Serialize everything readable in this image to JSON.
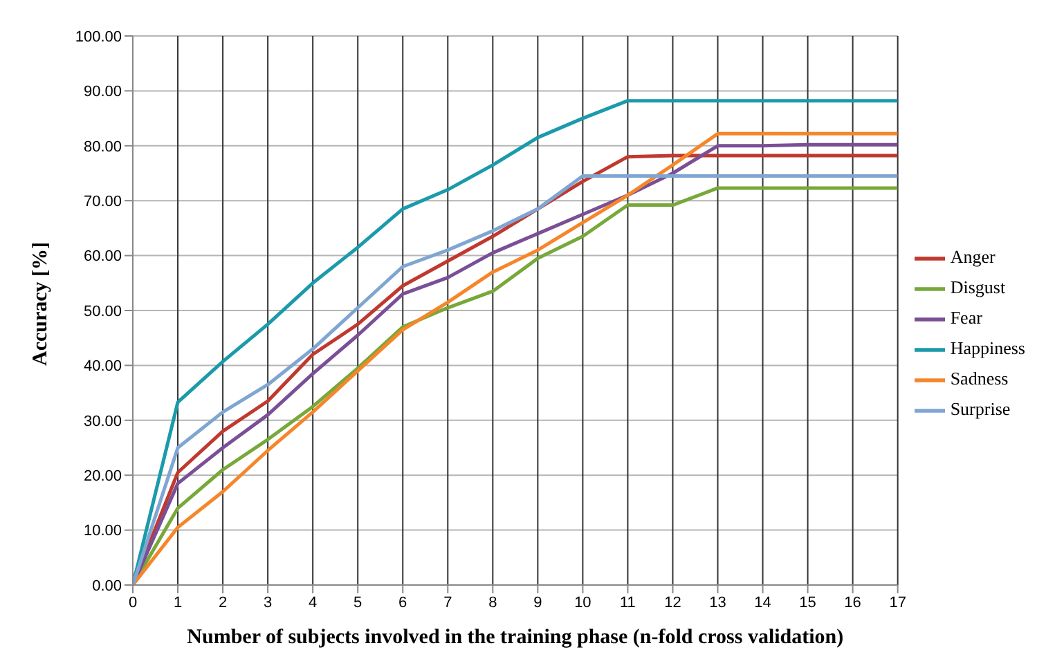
{
  "chart_data": {
    "type": "line",
    "xlabel": "Number of subjects involved in the training phase (n-fold cross validation)",
    "ylabel": "Accuracy  [%]",
    "x": [
      0,
      1,
      2,
      3,
      4,
      5,
      6,
      7,
      8,
      9,
      10,
      11,
      12,
      13,
      14,
      15,
      16,
      17
    ],
    "xlim": [
      0,
      17
    ],
    "xticks": [
      0,
      1,
      2,
      3,
      4,
      5,
      6,
      7,
      8,
      9,
      10,
      11,
      12,
      13,
      14,
      15,
      16,
      17
    ],
    "ylim": [
      0,
      100
    ],
    "yticks": [
      {
        "value": 0,
        "label": "0.00"
      },
      {
        "value": 10,
        "label": "10.00"
      },
      {
        "value": 20,
        "label": "20.00"
      },
      {
        "value": 30,
        "label": "30.00"
      },
      {
        "value": 40,
        "label": "40.00"
      },
      {
        "value": 50,
        "label": "50.00"
      },
      {
        "value": 60,
        "label": "60.00"
      },
      {
        "value": 70,
        "label": "70.00"
      },
      {
        "value": 80,
        "label": "80.00"
      },
      {
        "value": 90,
        "label": "90.00"
      },
      {
        "value": 100,
        "label": "100.00"
      }
    ],
    "grid": true,
    "legend": "right",
    "marker": "none",
    "line_style": "solid",
    "series": [
      {
        "name": "Anger",
        "color": "#c0392f",
        "values": [
          0,
          20.5,
          28,
          33.5,
          42,
          47.5,
          54.5,
          59,
          63.5,
          68.5,
          73.5,
          78,
          78.2,
          78.2,
          78.2,
          78.2,
          78.2,
          78.2
        ]
      },
      {
        "name": "Disgust",
        "color": "#77a83a",
        "values": [
          0,
          14,
          21,
          26.5,
          32.5,
          39.5,
          47,
          50.5,
          53.5,
          59.5,
          63.5,
          69.2,
          69.2,
          72.3,
          72.3,
          72.3,
          72.3,
          72.3
        ]
      },
      {
        "name": "Fear",
        "color": "#7a4f96",
        "values": [
          0,
          18.5,
          25,
          31,
          38.5,
          45.5,
          53,
          56,
          60.5,
          64,
          67.5,
          71,
          75,
          80,
          80,
          80.2,
          80.2,
          80.2
        ]
      },
      {
        "name": "Happiness",
        "color": "#1b9aab",
        "values": [
          0,
          33.3,
          40.7,
          47.5,
          55,
          61.5,
          68.5,
          72,
          76.5,
          81.5,
          85,
          88.2,
          88.2,
          88.2,
          88.2,
          88.2,
          88.2,
          88.2
        ]
      },
      {
        "name": "Sadness",
        "color": "#f5862a",
        "values": [
          0,
          10.5,
          17,
          24.5,
          31.5,
          39,
          46.5,
          51.5,
          57,
          61,
          66,
          71,
          76.5,
          82.2,
          82.2,
          82.2,
          82.2,
          82.2
        ]
      },
      {
        "name": "Surprise",
        "color": "#7fa6d3",
        "values": [
          0,
          25,
          31.5,
          36.5,
          43,
          50.5,
          58,
          61,
          64.5,
          68.5,
          74.5,
          74.5,
          74.5,
          74.5,
          74.5,
          74.5,
          74.5,
          74.5
        ]
      }
    ]
  }
}
